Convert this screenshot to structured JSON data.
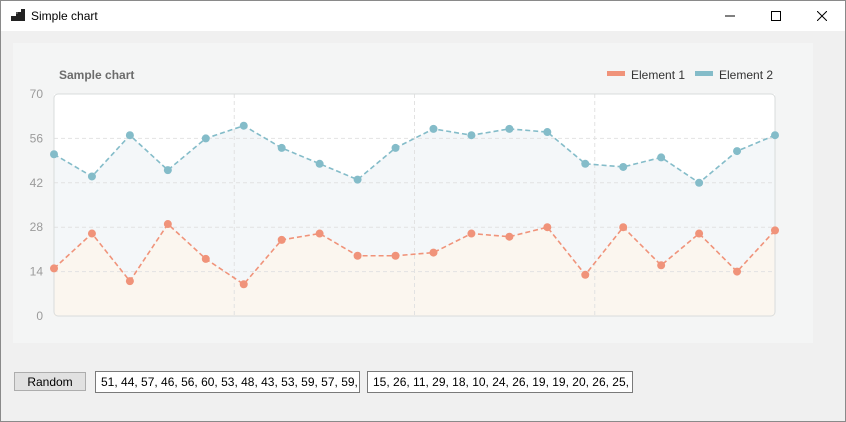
{
  "window": {
    "title": "Simple chart",
    "min_icon": "minimize-icon",
    "max_icon": "maximize-icon",
    "close_icon": "close-icon"
  },
  "controls": {
    "random_label": "Random",
    "series1_text": "51, 44, 57, 46, 56, 60, 53, 48, 43, 53, 59, 57, 59, 58,",
    "series2_text": "15, 26, 11, 29, 18, 10, 24, 26, 19, 19, 20, 26, 25, 28,"
  },
  "colors": {
    "element1": "#f0937a",
    "element2": "#84bcc9",
    "fill1": "#fbf6ef",
    "fill2": "#f4f7f9",
    "grid": "#e2e2e2",
    "axis_text": "#9b9b9b",
    "plot_border": "#d9dcdc"
  },
  "chart_data": {
    "type": "line",
    "title": "Sample chart",
    "xlabel": "",
    "ylabel": "",
    "ylim": [
      0,
      70
    ],
    "yticks": [
      0,
      14,
      28,
      42,
      56,
      70
    ],
    "grid": true,
    "legend": "top-right",
    "series": [
      {
        "name": "Element 1",
        "values": [
          15,
          26,
          11,
          29,
          18,
          10,
          24,
          26,
          19,
          19,
          20,
          26,
          25,
          28,
          13,
          28,
          16,
          26,
          14,
          27
        ]
      },
      {
        "name": "Element 2",
        "values": [
          51,
          44,
          57,
          46,
          56,
          60,
          53,
          48,
          43,
          53,
          59,
          57,
          59,
          58,
          48,
          47,
          50,
          42,
          52,
          57
        ]
      }
    ]
  }
}
